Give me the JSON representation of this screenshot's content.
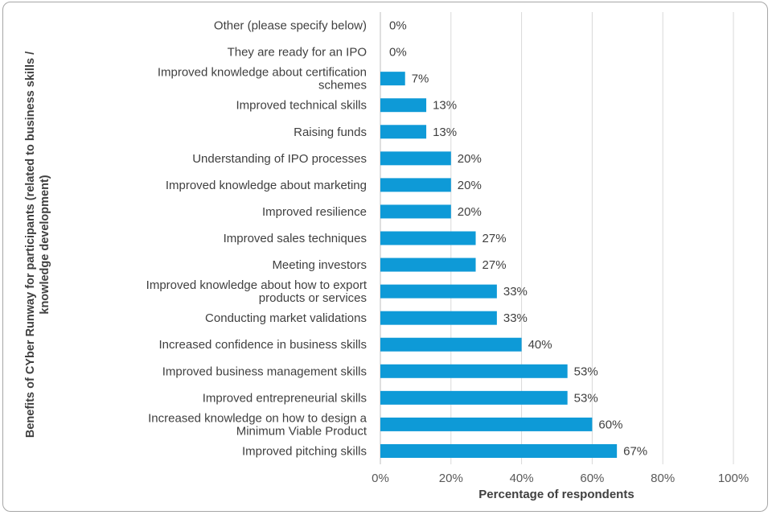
{
  "chart_data": {
    "type": "bar",
    "orientation": "horizontal",
    "title": "",
    "xlabel": "Percentage of respondents",
    "ylabel_lines": [
      "Benefits of CYber Runway for participants (related to business skills /",
      "knowledge development)"
    ],
    "xlim": [
      0,
      100
    ],
    "xticks": [
      "0%",
      "20%",
      "40%",
      "60%",
      "80%",
      "100%"
    ],
    "gridlines": "vertical",
    "bar_color": "#0e9ad7",
    "categories": [
      [
        "Other (please specify below)"
      ],
      [
        "They are ready for an IPO"
      ],
      [
        "Improved knowledge about certification",
        "schemes"
      ],
      [
        "Improved technical skills"
      ],
      [
        "Raising funds"
      ],
      [
        "Understanding of IPO processes"
      ],
      [
        "Improved knowledge about marketing"
      ],
      [
        "Improved resilience"
      ],
      [
        "Improved sales techniques"
      ],
      [
        "Meeting investors"
      ],
      [
        "Improved knowledge about how to export",
        "products or services"
      ],
      [
        "Conducting market validations"
      ],
      [
        "Increased confidence in business skills"
      ],
      [
        "Improved business management skills"
      ],
      [
        "Improved entrepreneurial skills"
      ],
      [
        "Increased knowledge on how to design a",
        "Minimum Viable Product"
      ],
      [
        "Improved pitching skills"
      ]
    ],
    "values": [
      0,
      0,
      7,
      13,
      13,
      20,
      20,
      20,
      27,
      27,
      33,
      33,
      40,
      53,
      53,
      60,
      67
    ],
    "value_labels": [
      "0%",
      "0%",
      "7%",
      "13%",
      "13%",
      "20%",
      "20%",
      "20%",
      "27%",
      "27%",
      "33%",
      "33%",
      "40%",
      "53%",
      "53%",
      "60%",
      "67%"
    ]
  }
}
